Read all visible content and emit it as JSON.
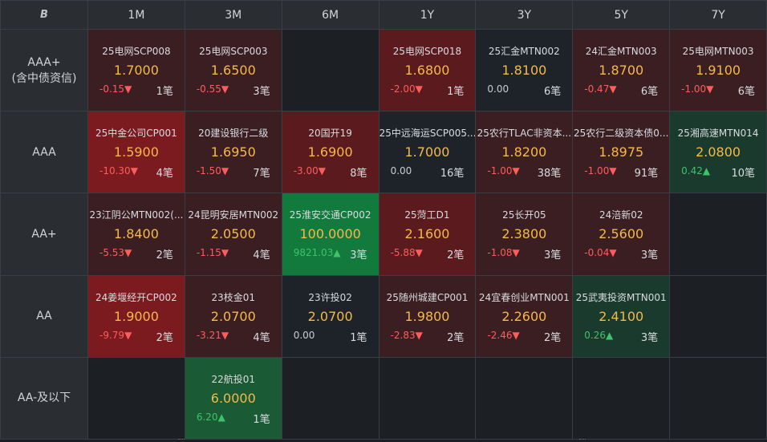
{
  "corner_label": "B",
  "columns": [
    "1M",
    "3M",
    "6M",
    "1Y",
    "3Y",
    "5Y",
    "7Y"
  ],
  "rows": [
    {
      "label": "AAA+\n(含中债资信)",
      "cells": [
        {
          "name": "25电网SCP008",
          "rate": "1.7000",
          "change": "-0.15",
          "dir": "down",
          "count": "1笔",
          "bg": "r1"
        },
        {
          "name": "25电网SCP003",
          "rate": "1.6500",
          "change": "-0.55",
          "dir": "down",
          "count": "3笔",
          "bg": "r1"
        },
        null,
        {
          "name": "25电网SCP018",
          "rate": "1.6800",
          "change": "-2.00",
          "dir": "down",
          "count": "1笔",
          "bg": "r2"
        },
        {
          "name": "25汇金MTN002",
          "rate": "1.8100",
          "change": "0.00",
          "dir": "flat",
          "count": "6笔",
          "bg": "n"
        },
        {
          "name": "24汇金MTN003",
          "rate": "1.8700",
          "change": "-0.47",
          "dir": "down",
          "count": "6笔",
          "bg": "r1"
        },
        {
          "name": "25电网MTN003",
          "rate": "1.9100",
          "change": "-1.00",
          "dir": "down",
          "count": "6笔",
          "bg": "r1"
        }
      ]
    },
    {
      "label": "AAA",
      "cells": [
        {
          "name": "25中金公司CP001",
          "rate": "1.5900",
          "change": "-10.30",
          "dir": "down",
          "count": "4笔",
          "bg": "r3"
        },
        {
          "name": "20建设银行二级",
          "rate": "1.6950",
          "change": "-1.50",
          "dir": "down",
          "count": "7笔",
          "bg": "r1"
        },
        {
          "name": "20国开19",
          "rate": "1.6900",
          "change": "-3.00",
          "dir": "down",
          "count": "8笔",
          "bg": "r2"
        },
        {
          "name": "25中远海运SCP005...",
          "rate": "1.7000",
          "change": "0.00",
          "dir": "flat",
          "count": "16笔",
          "bg": "n"
        },
        {
          "name": "25农行TLAC非资本...",
          "rate": "1.8200",
          "change": "-1.00",
          "dir": "down",
          "count": "38笔",
          "bg": "r1"
        },
        {
          "name": "25农行二级资本债0...",
          "rate": "1.8975",
          "change": "-1.00",
          "dir": "down",
          "count": "91笔",
          "bg": "r1"
        },
        {
          "name": "25湘高速MTN014",
          "rate": "2.0800",
          "change": "0.42",
          "dir": "up",
          "count": "10笔",
          "bg": "g1"
        }
      ]
    },
    {
      "label": "AA+",
      "cells": [
        {
          "name": "23江阴公MTN002(...",
          "rate": "1.8400",
          "change": "-5.53",
          "dir": "down",
          "count": "2笔",
          "bg": "r1"
        },
        {
          "name": "24昆明安居MTN002",
          "rate": "2.0500",
          "change": "-1.15",
          "dir": "down",
          "count": "4笔",
          "bg": "r1"
        },
        {
          "name": "25淮安交通CP002",
          "rate": "100.0000",
          "change": "9821.03",
          "dir": "up",
          "count": "3笔",
          "bg": "g3"
        },
        {
          "name": "25菏工D1",
          "rate": "2.1600",
          "change": "-5.88",
          "dir": "down",
          "count": "2笔",
          "bg": "r2"
        },
        {
          "name": "25长开05",
          "rate": "2.3800",
          "change": "-1.08",
          "dir": "down",
          "count": "3笔",
          "bg": "r1"
        },
        {
          "name": "24涪新02",
          "rate": "2.5600",
          "change": "-0.04",
          "dir": "down",
          "count": "3笔",
          "bg": "r1"
        },
        null
      ]
    },
    {
      "label": "AA",
      "cells": [
        {
          "name": "24姜堰经开CP002",
          "rate": "1.9000",
          "change": "-9.79",
          "dir": "down",
          "count": "2笔",
          "bg": "r3"
        },
        {
          "name": "23枝金01",
          "rate": "2.0700",
          "change": "-3.21",
          "dir": "down",
          "count": "4笔",
          "bg": "r1"
        },
        {
          "name": "23许投02",
          "rate": "2.0700",
          "change": "0.00",
          "dir": "flat",
          "count": "1笔",
          "bg": "n"
        },
        {
          "name": "25随州城建CP001",
          "rate": "1.9800",
          "change": "-2.83",
          "dir": "down",
          "count": "2笔",
          "bg": "r1"
        },
        {
          "name": "24宜春创业MTN001",
          "rate": "2.2600",
          "change": "-2.46",
          "dir": "down",
          "count": "2笔",
          "bg": "r1"
        },
        {
          "name": "25武夷投资MTN001",
          "rate": "2.4100",
          "change": "0.26",
          "dir": "up",
          "count": "3笔",
          "bg": "g1"
        },
        null
      ]
    },
    {
      "label": "AA-及以下",
      "cells": [
        null,
        {
          "name": "22航投01",
          "rate": "6.0000",
          "change": "6.20",
          "dir": "up",
          "count": "1笔",
          "bg": "g2"
        },
        null,
        null,
        null,
        null,
        null
      ]
    }
  ],
  "arrow_up": "▲",
  "arrow_down": "▼",
  "colors": {
    "rate_text": "#f5b94a",
    "down": "#ff5c5c",
    "up": "#3ec36a"
  }
}
